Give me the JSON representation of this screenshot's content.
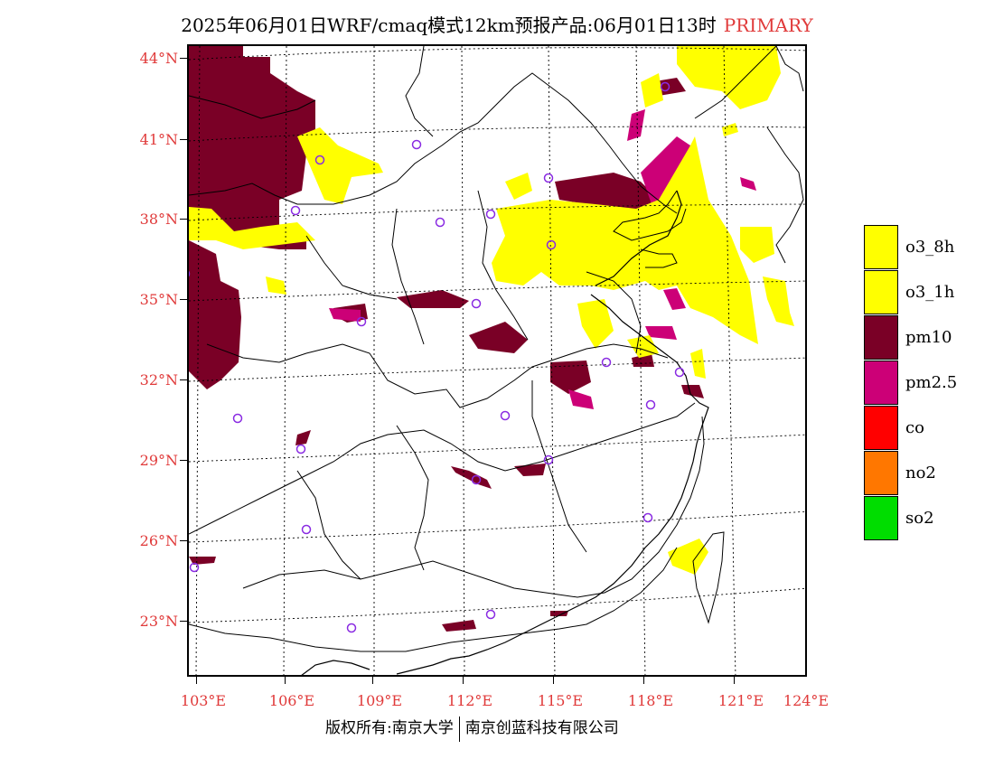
{
  "title": {
    "main": "2025年06月01日WRF/cmaq模式12km预报产品:06月01日13时",
    "tag": "PRIMARY"
  },
  "axes": {
    "lat_labels": [
      "44°N",
      "41°N",
      "38°N",
      "35°N",
      "32°N",
      "29°N",
      "26°N",
      "23°N"
    ],
    "lon_labels": [
      "103°E",
      "106°E",
      "109°E",
      "112°E",
      "115°E",
      "118°E",
      "121°E",
      "124°E"
    ]
  },
  "legend": [
    {
      "label": "o3_8h",
      "color": "#ffff00"
    },
    {
      "label": "o3_1h",
      "color": "#ffff00"
    },
    {
      "label": "pm10",
      "color": "#7a0026"
    },
    {
      "label": "pm2.5",
      "color": "#cc0077"
    },
    {
      "label": "co",
      "color": "#ff0000"
    },
    {
      "label": "no2",
      "color": "#ff7700"
    },
    {
      "label": "so2",
      "color": "#00dd00"
    }
  ],
  "footer": {
    "left": "版权所有:南京大学",
    "right": "南京创蓝科技有限公司"
  },
  "colors": {
    "axis_label": "#e03a3a",
    "station_marker": "#8a2be2"
  }
}
